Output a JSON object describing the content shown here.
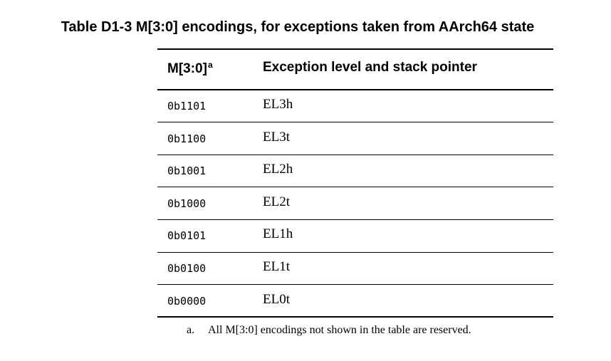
{
  "title": "Table D1-3 M[3:0] encodings, for exceptions taken from AArch64 state",
  "table": {
    "header": [
      {
        "text": "M[3:0]",
        "note": "a"
      },
      "Exception level and stack pointer"
    ],
    "rows": [
      [
        "0b1101",
        "EL3h"
      ],
      [
        "0b1100",
        "EL3t"
      ],
      [
        "0b1001",
        "EL2h"
      ],
      [
        "0b1000",
        "EL2t"
      ],
      [
        "0b0101",
        "EL1h"
      ],
      [
        "0b0100",
        "EL1t"
      ],
      [
        "0b0000",
        "EL0t"
      ]
    ]
  },
  "footnote": {
    "marker": "a.",
    "text": "All M[3:0] encodings not shown in the table are reserved."
  }
}
